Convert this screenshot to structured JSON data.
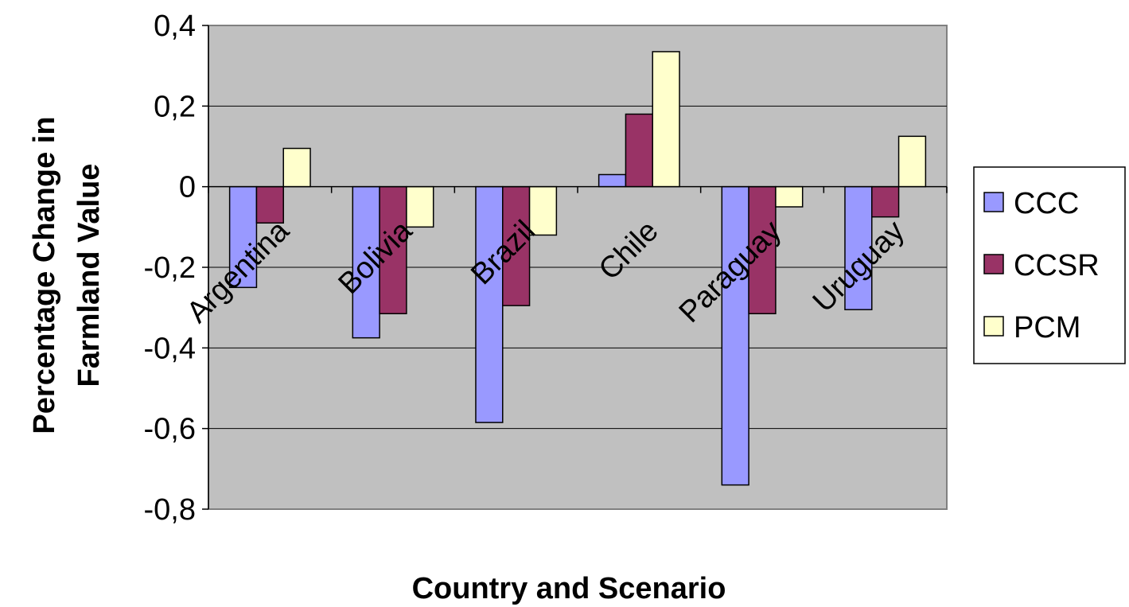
{
  "chart_data": {
    "type": "bar",
    "categories": [
      "Argentina",
      "Bolivia",
      "Brazil",
      "Chile",
      "Paraguay",
      "Uruguay"
    ],
    "series": [
      {
        "name": "CCC",
        "color": "#9999ff",
        "values": [
          -0.25,
          -0.375,
          -0.585,
          0.03,
          -0.74,
          -0.305
        ]
      },
      {
        "name": "CCSR",
        "color": "#993366",
        "values": [
          -0.09,
          -0.315,
          -0.295,
          0.18,
          -0.315,
          -0.075
        ]
      },
      {
        "name": "PCM",
        "color": "#ffffcc",
        "values": [
          0.095,
          -0.1,
          -0.12,
          0.335,
          -0.05,
          0.125
        ]
      }
    ],
    "ylim": [
      -0.8,
      0.4
    ],
    "yticks": [
      0.4,
      0.2,
      0,
      -0.2,
      -0.4,
      -0.6,
      -0.8
    ],
    "ytick_labels": [
      "0,4",
      "0,2",
      "0",
      "-0,2",
      "-0,4",
      "-0,6",
      "-0,8"
    ],
    "xlabel": "Country and Scenario",
    "ylabel_lines": [
      "Percentage Change in",
      "Farmland Value"
    ],
    "grid": true,
    "plot_background": "#c0c0c0",
    "legend_position": "right"
  }
}
